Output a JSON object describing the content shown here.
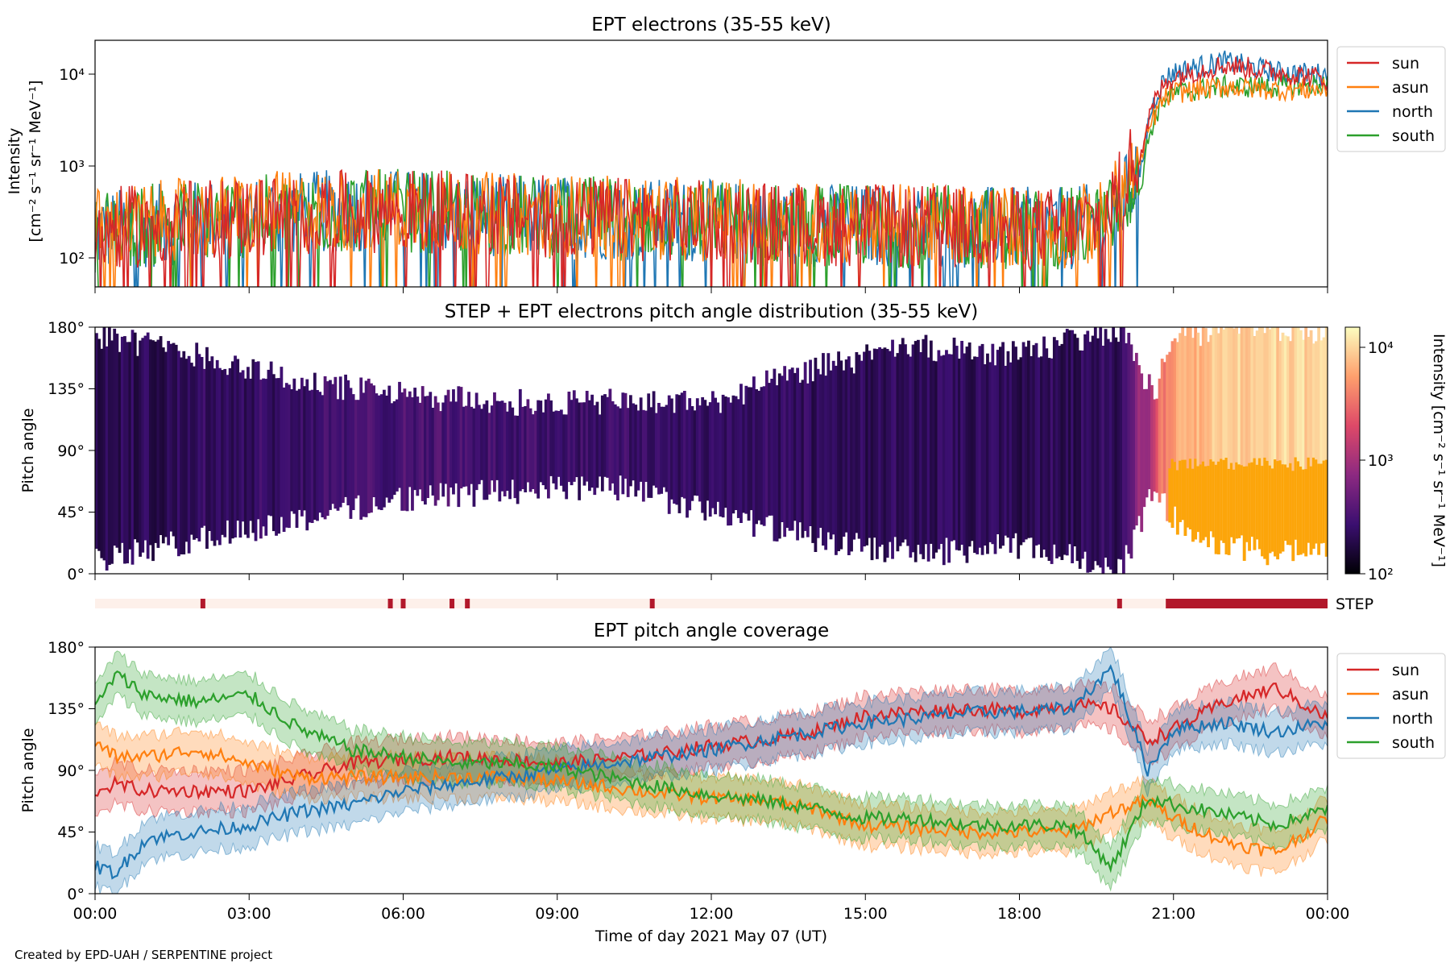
{
  "figure": {
    "footer": "Created by EPD-UAH / SERPENTINE project",
    "xlabel": "Time of day 2021 May 07 (UT)",
    "x_ticks": [
      "00:00",
      "03:00",
      "06:00",
      "09:00",
      "12:00",
      "15:00",
      "18:00",
      "21:00",
      "00:00"
    ]
  },
  "panels": {
    "intensity": {
      "title": "EPT electrons (35-55 keV)",
      "ylabel_line1": "Intensity",
      "ylabel_line2": "[cm⁻² s⁻¹ sr⁻¹ MeV⁻¹]",
      "y_ticks": [
        "10²",
        "10³",
        "10⁴"
      ]
    },
    "pad": {
      "title": "STEP + EPT electrons pitch angle distribution (35-55 keV)",
      "ylabel": "Pitch angle",
      "y_ticks": [
        "0°",
        "45°",
        "90°",
        "135°",
        "180°"
      ],
      "colorbar_label": "Intensity [cm⁻² s⁻¹ sr⁻¹ MeV⁻¹]",
      "colorbar_ticks": [
        "10²",
        "10³",
        "10⁴"
      ]
    },
    "step_strip": {
      "label": "STEP"
    },
    "coverage": {
      "title": "EPT pitch angle coverage",
      "ylabel": "Pitch angle",
      "y_ticks": [
        "0°",
        "45°",
        "90°",
        "135°",
        "180°"
      ]
    }
  },
  "legend": [
    {
      "name": "sun",
      "color": "#d62728"
    },
    {
      "name": "asun",
      "color": "#ff7f0e"
    },
    {
      "name": "north",
      "color": "#1f77b4"
    },
    {
      "name": "south",
      "color": "#2ca02c"
    }
  ],
  "chart_data": [
    {
      "type": "line",
      "title": "EPT electrons (35-55 keV)",
      "xlabel": "Time of day 2021 May 07 (UT)",
      "ylabel": "Intensity [cm⁻² s⁻¹ sr⁻¹ MeV⁻¹]",
      "yscale": "log",
      "xlim": [
        0,
        24
      ],
      "ylim": [
        50,
        22000
      ],
      "x_hours": [
        0,
        1,
        2,
        3,
        4,
        5,
        6,
        7,
        8,
        9,
        10,
        11,
        12,
        13,
        14,
        15,
        16,
        17,
        18,
        19,
        19.6,
        20,
        20.4,
        20.8,
        21,
        22,
        23,
        24
      ],
      "series": [
        {
          "name": "sun",
          "color": "#d62728",
          "values": [
            200,
            230,
            260,
            280,
            300,
            320,
            330,
            310,
            290,
            280,
            270,
            260,
            250,
            240,
            230,
            230,
            220,
            220,
            210,
            210,
            260,
            550,
            1500,
            7000,
            9000,
            12000,
            10000,
            8500
          ]
        },
        {
          "name": "asun",
          "color": "#ff7f0e",
          "values": [
            210,
            240,
            270,
            300,
            320,
            340,
            340,
            320,
            300,
            290,
            280,
            270,
            260,
            250,
            240,
            240,
            230,
            230,
            220,
            220,
            250,
            500,
            1200,
            5000,
            6000,
            7000,
            6500,
            6500
          ]
        },
        {
          "name": "north",
          "color": "#1f77b4",
          "values": [
            190,
            220,
            250,
            280,
            310,
            330,
            330,
            310,
            290,
            280,
            270,
            260,
            250,
            240,
            230,
            230,
            220,
            220,
            210,
            210,
            240,
            400,
            900,
            8000,
            10000,
            13000,
            10000,
            9500
          ]
        },
        {
          "name": "south",
          "color": "#2ca02c",
          "values": [
            200,
            230,
            260,
            280,
            300,
            320,
            330,
            310,
            290,
            280,
            270,
            260,
            250,
            240,
            230,
            230,
            220,
            220,
            210,
            210,
            220,
            350,
            700,
            5000,
            6000,
            7000,
            7000,
            7500
          ]
        }
      ]
    },
    {
      "type": "heatmap",
      "title": "STEP + EPT electrons pitch angle distribution (35-55 keV)",
      "ylabel": "Pitch angle",
      "xlim": [
        0,
        24
      ],
      "ylim": [
        0,
        180
      ],
      "colorbar": {
        "scale": "log",
        "range": [
          100,
          15000
        ],
        "label": "Intensity [cm⁻² s⁻¹ sr⁻¹ MeV⁻¹]"
      },
      "x_hours": [
        0,
        2,
        4,
        6,
        8,
        10,
        12,
        14,
        16,
        18,
        20,
        20.6,
        21,
        22,
        23,
        24
      ],
      "pa_min": [
        10,
        25,
        40,
        55,
        60,
        65,
        45,
        25,
        15,
        20,
        5,
        60,
        40,
        20,
        15,
        20
      ],
      "pa_max": [
        175,
        160,
        140,
        130,
        125,
        125,
        125,
        150,
        165,
        160,
        180,
        130,
        170,
        180,
        180,
        175
      ],
      "intensity": [
        200,
        230,
        260,
        330,
        290,
        270,
        250,
        230,
        220,
        210,
        230,
        1200,
        6000,
        9000,
        10000,
        9000
      ]
    },
    {
      "type": "line",
      "title": "EPT pitch angle coverage",
      "xlabel": "Time of day 2021 May 07 (UT)",
      "ylabel": "Pitch angle",
      "xlim": [
        0,
        24
      ],
      "ylim": [
        0,
        180
      ],
      "x_hours": [
        0,
        0.4,
        1,
        2,
        3,
        4,
        5,
        6,
        7,
        8,
        9,
        10,
        11,
        12,
        13,
        14,
        15,
        16,
        17,
        18,
        19,
        19.8,
        20.5,
        21,
        22,
        23,
        24
      ],
      "band_halfwidth_deg": 15,
      "series": [
        {
          "name": "sun",
          "color": "#d62728",
          "values": [
            75,
            80,
            75,
            75,
            75,
            85,
            95,
            98,
            100,
            98,
            95,
            98,
            102,
            108,
            112,
            118,
            130,
            133,
            135,
            133,
            138,
            135,
            112,
            120,
            140,
            150,
            128
          ]
        },
        {
          "name": "asun",
          "color": "#ff7f0e",
          "values": [
            110,
            100,
            100,
            105,
            95,
            85,
            85,
            85,
            85,
            85,
            82,
            78,
            73,
            70,
            68,
            62,
            50,
            48,
            45,
            45,
            45,
            60,
            68,
            55,
            38,
            30,
            55
          ]
        },
        {
          "name": "north",
          "color": "#1f77b4",
          "values": [
            20,
            15,
            40,
            45,
            50,
            60,
            65,
            75,
            80,
            85,
            90,
            95,
            100,
            105,
            112,
            118,
            125,
            128,
            132,
            133,
            135,
            165,
            90,
            120,
            125,
            118,
            125
          ]
        },
        {
          "name": "south",
          "color": "#2ca02c",
          "values": [
            135,
            160,
            145,
            140,
            145,
            120,
            105,
            100,
            95,
            95,
            92,
            85,
            78,
            72,
            68,
            62,
            55,
            55,
            50,
            50,
            50,
            20,
            70,
            65,
            58,
            50,
            62
          ]
        }
      ]
    },
    {
      "type": "bar",
      "title": "STEP",
      "description_units": "hours of day with STEP data",
      "marks_hours": [
        2.1,
        5.75,
        6.0,
        6.95,
        7.25,
        10.85,
        19.95
      ],
      "span_hours": [
        20.85,
        24
      ]
    }
  ]
}
